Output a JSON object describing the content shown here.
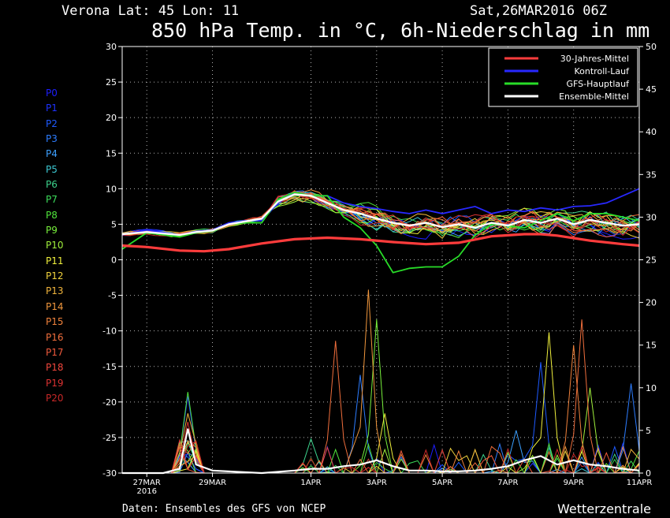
{
  "header": {
    "location": "Verona   Lat: 45 Lon: 11",
    "run": "Sat,26MAR2016 06Z",
    "title": "850 hPa Temp. in °C, 6h-Niederschlag in mm"
  },
  "footer": {
    "source": "Daten: Ensembles des GFS von NCEP",
    "brand": "Wetterzentrale"
  },
  "members": [
    {
      "label": "P0",
      "color": "#1e1eff"
    },
    {
      "label": "P1",
      "color": "#1e32ff"
    },
    {
      "label": "P2",
      "color": "#1e5aff"
    },
    {
      "label": "P3",
      "color": "#2d7dff"
    },
    {
      "label": "P4",
      "color": "#3ca0ff"
    },
    {
      "label": "P5",
      "color": "#3cc8d2"
    },
    {
      "label": "P6",
      "color": "#3cd28c"
    },
    {
      "label": "P7",
      "color": "#3cdc5a"
    },
    {
      "label": "P8",
      "color": "#50e63c"
    },
    {
      "label": "P9",
      "color": "#78f03c"
    },
    {
      "label": "P10",
      "color": "#a0f03c"
    },
    {
      "label": "P11",
      "color": "#f0f03c"
    },
    {
      "label": "P12",
      "color": "#f0d23c"
    },
    {
      "label": "P13",
      "color": "#f0b43c"
    },
    {
      "label": "P14",
      "color": "#f0963c"
    },
    {
      "label": "P15",
      "color": "#f0823c"
    },
    {
      "label": "P16",
      "color": "#f06e3c"
    },
    {
      "label": "P17",
      "color": "#f05a3c"
    },
    {
      "label": "P18",
      "color": "#f0463c"
    },
    {
      "label": "P19",
      "color": "#dc3232"
    },
    {
      "label": "P20",
      "color": "#c82828"
    }
  ],
  "legend": [
    {
      "label": "30-Jahres-Mittel",
      "color": "#ff3c3c"
    },
    {
      "label": "Kontroll-Lauf",
      "color": "#2828ff"
    },
    {
      "label": "GFS-Hauptlauf",
      "color": "#28dc28"
    },
    {
      "label": "Ensemble-Mittel",
      "color": "#ffffff"
    }
  ],
  "chart_data": {
    "type": "line",
    "legend_position": "top-right",
    "grid": true,
    "x_ticks": [
      {
        "t": 1.5,
        "label": "27MAR",
        "sub": "2016"
      },
      {
        "t": 3.5,
        "label": "29MAR"
      },
      {
        "t": 6.5,
        "label": "1APR"
      },
      {
        "t": 8.5,
        "label": "3APR"
      },
      {
        "t": 10.5,
        "label": "5APR"
      },
      {
        "t": 12.5,
        "label": "7APR"
      },
      {
        "t": 14.5,
        "label": "9APR"
      },
      {
        "t": 16.5,
        "label": "11APR"
      }
    ],
    "xlim": [
      0.75,
      16.5
    ],
    "y_left": {
      "min": -30,
      "max": 30,
      "ticks": [
        30,
        25,
        20,
        15,
        10,
        5,
        0,
        -5,
        -10,
        -15,
        -20,
        -25,
        -30
      ]
    },
    "y_right": {
      "min": 0,
      "max": 50,
      "ticks": [
        50,
        45,
        40,
        35,
        30,
        25,
        20,
        15,
        10,
        5,
        0
      ]
    },
    "temperature": {
      "climatology": {
        "t": [
          0.75,
          1.5,
          2.5,
          3.25,
          4,
          5,
          6,
          7,
          8,
          9,
          10,
          11,
          12,
          13,
          13.5,
          14,
          15,
          16,
          16.5
        ],
        "v": [
          2.0,
          1.8,
          1.3,
          1.2,
          1.5,
          2.3,
          2.9,
          3.1,
          2.9,
          2.5,
          2.2,
          2.4,
          3.3,
          3.6,
          3.6,
          3.4,
          2.7,
          2.2,
          2.0
        ]
      },
      "control": {
        "t": [
          0.75,
          1.5,
          2.5,
          3,
          3.5,
          4,
          4.5,
          5,
          5.5,
          6,
          6.5,
          7,
          7.5,
          8,
          8.5,
          9,
          9.5,
          10,
          10.5,
          11,
          11.5,
          12,
          12.5,
          13,
          13.5,
          14,
          14.5,
          15,
          15.5,
          16,
          16.5
        ],
        "v": [
          3.5,
          4.2,
          3.5,
          4.0,
          4.2,
          5.2,
          5.5,
          5.5,
          8.0,
          9.5,
          9.0,
          9.0,
          8.0,
          7.5,
          7.2,
          6.8,
          6.5,
          7.0,
          6.5,
          7.0,
          7.5,
          6.5,
          7.0,
          6.8,
          7.3,
          7.0,
          7.5,
          7.6,
          8.0,
          9.0,
          10.0
        ]
      },
      "operational": {
        "t": [
          0.75,
          1.5,
          2.5,
          3,
          3.5,
          4,
          4.5,
          5,
          5.5,
          6,
          6.5,
          7,
          7.5,
          8,
          8.5,
          9,
          9.5,
          10,
          10.5,
          11,
          11.5,
          12,
          12.5,
          13,
          13.5,
          14,
          14.5,
          15,
          15.5,
          16,
          16.5
        ],
        "v": [
          1.5,
          3.8,
          3.2,
          3.8,
          4.0,
          5.0,
          5.2,
          5.2,
          8.5,
          9.5,
          9.0,
          9.0,
          6.0,
          4.5,
          2.0,
          -1.8,
          -1.2,
          -1.0,
          -1.0,
          0.5,
          3.5,
          5.0,
          4.8,
          4.5,
          5.5,
          6.5,
          5.5,
          6.5,
          6.5,
          6.0,
          5.5
        ]
      },
      "ensemble_mean": {
        "t": [
          0.75,
          1.5,
          2.5,
          3,
          3.5,
          4,
          4.5,
          5,
          5.5,
          6,
          6.5,
          7,
          7.5,
          8,
          8.5,
          9,
          9.5,
          10,
          10.5,
          11,
          11.5,
          12,
          12.5,
          13,
          13.5,
          14,
          14.5,
          15,
          15.5,
          16,
          16.5
        ],
        "v": [
          3.6,
          3.9,
          3.5,
          3.9,
          4.1,
          5.0,
          5.4,
          5.8,
          8.2,
          9.2,
          9.0,
          8.0,
          7.0,
          6.5,
          5.8,
          5.2,
          4.8,
          5.2,
          4.6,
          5.0,
          4.5,
          5.2,
          4.8,
          5.6,
          5.2,
          5.8,
          5.0,
          5.6,
          5.2,
          4.8,
          5.0
        ]
      }
    },
    "precipitation": {
      "ensemble_mean": {
        "t": [
          0.75,
          2,
          2.5,
          2.75,
          3,
          3.5,
          5,
          6,
          6.5,
          7,
          7.5,
          8,
          8.5,
          9,
          9.5,
          10,
          10.5,
          11,
          11.5,
          12,
          12.5,
          13,
          13.5,
          14,
          14.5,
          15,
          15.5,
          16,
          16.5
        ],
        "v": [
          0,
          0,
          0.5,
          5.2,
          1.0,
          0.3,
          0,
          0.3,
          0.5,
          0.5,
          0.8,
          1.0,
          1.5,
          0.8,
          0.3,
          0.3,
          0.2,
          0.2,
          0.3,
          0.5,
          0.8,
          1.5,
          2.0,
          1.0,
          1.5,
          1.0,
          0.8,
          0.5,
          0.3
        ]
      },
      "member_peaks": [
        {
          "member": "P1",
          "t": 2.75,
          "v": 9.0
        },
        {
          "member": "P8",
          "t": 2.75,
          "v": 9.5
        },
        {
          "member": "P13",
          "t": 2.75,
          "v": 7.0
        },
        {
          "member": "P19",
          "t": 2.75,
          "v": 6.0
        },
        {
          "member": "P6",
          "t": 6.5,
          "v": 4.0
        },
        {
          "member": "P16",
          "t": 7.25,
          "v": 15.5
        },
        {
          "member": "P3",
          "t": 8,
          "v": 11.5
        },
        {
          "member": "P14",
          "t": 8.25,
          "v": 21.5
        },
        {
          "member": "P9",
          "t": 8.5,
          "v": 18.0
        },
        {
          "member": "P11",
          "t": 8.75,
          "v": 7.0
        },
        {
          "member": "P4",
          "t": 12.75,
          "v": 5.0
        },
        {
          "member": "P2",
          "t": 13.5,
          "v": 13.0
        },
        {
          "member": "P11",
          "t": 13.75,
          "v": 16.5
        },
        {
          "member": "P15",
          "t": 14.5,
          "v": 15.0
        },
        {
          "member": "P16",
          "t": 14.75,
          "v": 18.0
        },
        {
          "member": "P10",
          "t": 15,
          "v": 10.0
        },
        {
          "member": "P3",
          "t": 16.25,
          "v": 10.5
        }
      ]
    }
  }
}
